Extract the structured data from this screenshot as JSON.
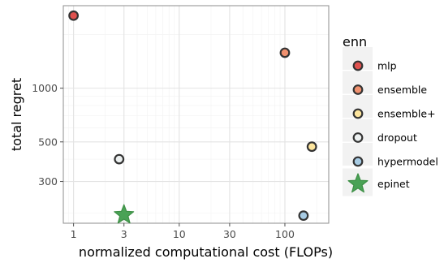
{
  "chart_data": {
    "type": "scatter",
    "xlabel": "normalized computational cost (FLOPs)",
    "ylabel": "total regret",
    "x_scale": "log",
    "y_scale": "log",
    "xlim": [
      0.8,
      260
    ],
    "ylim": [
      175,
      2900
    ],
    "x_ticks": [
      1,
      3,
      10,
      30,
      100
    ],
    "x_tick_labels": [
      "1",
      "3",
      "10",
      "30",
      "100"
    ],
    "y_ticks": [
      300,
      500,
      1000
    ],
    "y_tick_labels": [
      "300",
      "500",
      "1000"
    ],
    "grid": true,
    "legend_title": "enn",
    "legend_position": "right",
    "series": [
      {
        "name": "mlp",
        "color": "#e0524f",
        "marker": "circle",
        "x": [
          1
        ],
        "y": [
          2550
        ]
      },
      {
        "name": "ensemble",
        "color": "#f0916f",
        "marker": "circle",
        "x": [
          100
        ],
        "y": [
          1580
        ]
      },
      {
        "name": "ensemble+",
        "color": "#fde59d",
        "marker": "circle",
        "x": [
          180
        ],
        "y": [
          470
        ]
      },
      {
        "name": "dropout",
        "color": "#ecf0f0",
        "marker": "circle",
        "x": [
          2.7
        ],
        "y": [
          400
        ]
      },
      {
        "name": "hypermodel",
        "color": "#a7cbe3",
        "marker": "circle",
        "x": [
          150
        ],
        "y": [
          193
        ]
      },
      {
        "name": "epinet",
        "color": "#4aa256",
        "marker": "star",
        "x": [
          3
        ],
        "y": [
          195
        ]
      }
    ]
  }
}
